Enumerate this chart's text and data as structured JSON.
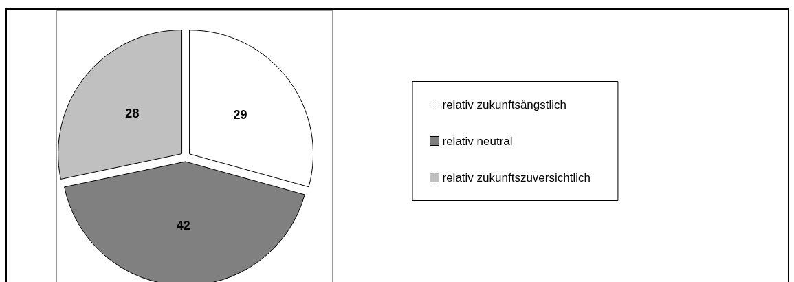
{
  "chart_data": {
    "type": "pie",
    "categories": [
      "relativ zukunftsängstlich",
      "relativ neutral",
      "relativ zukunftszuversichtlich"
    ],
    "values": [
      29,
      42,
      28
    ],
    "colors": [
      "#ffffff",
      "#808080",
      "#c0c0c0"
    ],
    "data_labels": true,
    "legend": "right"
  }
}
